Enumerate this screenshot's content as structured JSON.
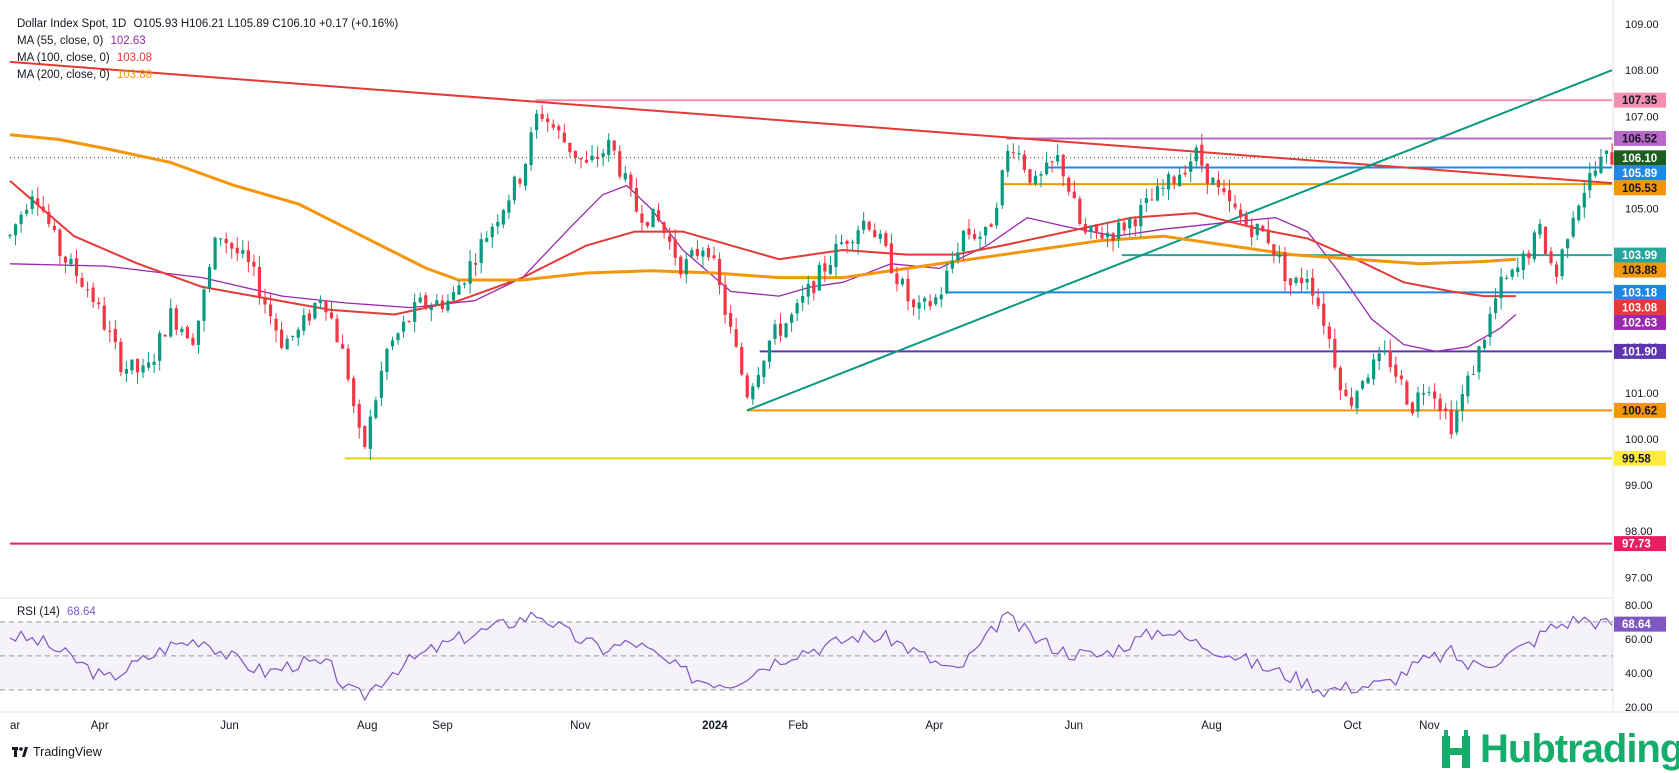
{
  "header": {
    "symbol": "Dollar Index Spot, 1D",
    "ohlc": "O105.93  H106.21  L105.89  C106.10  +0.17 (+0.16%)"
  },
  "indicators": [
    {
      "label": "MA (55, close, 0)",
      "value": "102.63",
      "color": "#9c27b0"
    },
    {
      "label": "MA (100, close, 0)",
      "value": "103.08",
      "color": "#e53935"
    },
    {
      "label": "MA (200, close, 0)",
      "value": "103.88",
      "color": "#f49609"
    }
  ],
  "rsi": {
    "label": "RSI (14)",
    "value": "68.64"
  },
  "branding": {
    "tradingview": "TradingView",
    "hub": "Hubtrading"
  },
  "chart_data": [
    {
      "type": "candlestick",
      "title": "Dollar Index Spot, 1D",
      "x_ticks": [
        "ar",
        "Apr",
        "Jun",
        "Aug",
        "Sep",
        "Nov",
        "2024",
        "Feb",
        "Apr",
        "Jun",
        "Aug",
        "Oct",
        "Nov"
      ],
      "y_ticks": [
        "109.00",
        "108.00",
        "107.00",
        "106.00",
        "105.00",
        "104.00",
        "103.00",
        "102.00",
        "101.00",
        "100.00",
        "99.00",
        "98.00",
        "97.00"
      ],
      "ylim": [
        96.55,
        109.35
      ],
      "current_price": 106.1,
      "price_tags": [
        {
          "value": "107.35",
          "color": "#f48fb1",
          "text_color": "#131722"
        },
        {
          "value": "106.52",
          "color": "#ba68c8",
          "text_color": "#131722"
        },
        {
          "value": "106.10",
          "color": "#1b5e20",
          "text_color": "#ffffff"
        },
        {
          "value": "105.89",
          "color": "#1e88e5",
          "text_color": "#ffffff"
        },
        {
          "value": "105.53",
          "color": "#f49609",
          "text_color": "#131722"
        },
        {
          "value": "103.99",
          "color": "#26a69a",
          "text_color": "#ffffff"
        },
        {
          "value": "103.88",
          "color": "#f49609",
          "text_color": "#131722"
        },
        {
          "value": "103.18",
          "color": "#1e88e5",
          "text_color": "#ffffff"
        },
        {
          "value": "103.08",
          "color": "#e53935",
          "text_color": "#ffffff"
        },
        {
          "value": "102.63",
          "color": "#9c27b0",
          "text_color": "#ffffff"
        },
        {
          "value": "101.90",
          "color": "#5e35b1",
          "text_color": "#ffffff"
        },
        {
          "value": "100.62",
          "color": "#f49609",
          "text_color": "#131722"
        },
        {
          "value": "99.58",
          "color": "#ffeb3b",
          "text_color": "#131722"
        },
        {
          "value": "97.73",
          "color": "#e91e63",
          "text_color": "#ffffff"
        }
      ],
      "levels": [
        {
          "y": 107.35,
          "x0": 0.328,
          "color": "#f48fb1"
        },
        {
          "y": 106.52,
          "x0": 0.622,
          "color": "#ba68c8"
        },
        {
          "y": 105.89,
          "x0": 0.648,
          "color": "#1e88e5"
        },
        {
          "y": 105.53,
          "x0": 0.62,
          "color": "#f49609"
        },
        {
          "y": 103.99,
          "x0": 0.694,
          "color": "#26a69a"
        },
        {
          "y": 103.18,
          "x0": 0.584,
          "color": "#1e88e5"
        },
        {
          "y": 101.9,
          "x0": 0.468,
          "color": "#5e35b1"
        },
        {
          "y": 100.62,
          "x0": 0.46,
          "color": "#f49609"
        },
        {
          "y": 99.58,
          "x0": 0.209,
          "color": "#e3d800"
        },
        {
          "y": 97.73,
          "x0": 0.0,
          "color": "#e91e63"
        }
      ],
      "trendlines": [
        {
          "name": "resistance",
          "color": "#e53935",
          "from": [
            0.0,
            108.18
          ],
          "to": [
            1.0,
            105.55
          ]
        },
        {
          "name": "support",
          "color": "#089981",
          "from": [
            0.46,
            100.62
          ],
          "to": [
            1.0,
            108.0
          ]
        }
      ],
      "ma_series": [
        {
          "name": "MA (55, close, 0)",
          "color": "#9c27b0",
          "points": [
            [
              0.0,
              103.8
            ],
            [
              0.06,
              103.75
            ],
            [
              0.12,
              103.5
            ],
            [
              0.17,
              103.1
            ],
            [
              0.21,
              102.95
            ],
            [
              0.25,
              102.85
            ],
            [
              0.29,
              103.0
            ],
            [
              0.32,
              103.5
            ],
            [
              0.35,
              104.6
            ],
            [
              0.37,
              105.3
            ],
            [
              0.385,
              105.5
            ],
            [
              0.4,
              105.0
            ],
            [
              0.42,
              104.1
            ],
            [
              0.45,
              103.2
            ],
            [
              0.48,
              103.1
            ],
            [
              0.5,
              103.3
            ],
            [
              0.52,
              103.4
            ],
            [
              0.55,
              103.8
            ],
            [
              0.58,
              103.7
            ],
            [
              0.61,
              104.2
            ],
            [
              0.635,
              104.8
            ],
            [
              0.66,
              104.6
            ],
            [
              0.69,
              104.4
            ],
            [
              0.72,
              104.55
            ],
            [
              0.76,
              104.7
            ],
            [
              0.79,
              104.8
            ],
            [
              0.81,
              104.5
            ],
            [
              0.83,
              103.6
            ],
            [
              0.85,
              102.6
            ],
            [
              0.87,
              102.05
            ],
            [
              0.89,
              101.9
            ],
            [
              0.91,
              102.0
            ],
            [
              0.93,
              102.4
            ],
            [
              0.94,
              102.7
            ]
          ]
        },
        {
          "name": "MA (100, close, 0)",
          "color": "#e53935",
          "points": [
            [
              0.0,
              105.6
            ],
            [
              0.04,
              104.4
            ],
            [
              0.08,
              103.8
            ],
            [
              0.12,
              103.3
            ],
            [
              0.16,
              103.05
            ],
            [
              0.2,
              102.8
            ],
            [
              0.24,
              102.7
            ],
            [
              0.28,
              103.0
            ],
            [
              0.32,
              103.5
            ],
            [
              0.36,
              104.2
            ],
            [
              0.39,
              104.5
            ],
            [
              0.42,
              104.5
            ],
            [
              0.45,
              104.2
            ],
            [
              0.48,
              103.9
            ],
            [
              0.52,
              104.1
            ],
            [
              0.56,
              104.0
            ],
            [
              0.59,
              104.0
            ],
            [
              0.62,
              104.2
            ],
            [
              0.66,
              104.5
            ],
            [
              0.7,
              104.8
            ],
            [
              0.74,
              104.9
            ],
            [
              0.78,
              104.55
            ],
            [
              0.81,
              104.35
            ],
            [
              0.84,
              103.9
            ],
            [
              0.87,
              103.4
            ],
            [
              0.9,
              103.2
            ],
            [
              0.92,
              103.1
            ],
            [
              0.94,
              103.1
            ]
          ]
        },
        {
          "name": "MA (200, close, 0)",
          "color": "#f49609",
          "points": [
            [
              0.0,
              106.6
            ],
            [
              0.03,
              106.5
            ],
            [
              0.06,
              106.3
            ],
            [
              0.1,
              106.0
            ],
            [
              0.14,
              105.5
            ],
            [
              0.18,
              105.1
            ],
            [
              0.22,
              104.4
            ],
            [
              0.26,
              103.7
            ],
            [
              0.28,
              103.45
            ],
            [
              0.32,
              103.45
            ],
            [
              0.36,
              103.6
            ],
            [
              0.4,
              103.65
            ],
            [
              0.44,
              103.6
            ],
            [
              0.48,
              103.5
            ],
            [
              0.52,
              103.5
            ],
            [
              0.56,
              103.7
            ],
            [
              0.6,
              103.9
            ],
            [
              0.64,
              104.1
            ],
            [
              0.68,
              104.3
            ],
            [
              0.72,
              104.4
            ],
            [
              0.76,
              104.2
            ],
            [
              0.8,
              104.0
            ],
            [
              0.84,
              103.9
            ],
            [
              0.88,
              103.8
            ],
            [
              0.92,
              103.85
            ],
            [
              0.94,
              103.9
            ]
          ]
        }
      ],
      "price_path": [
        [
          0.0,
          104.4
        ],
        [
          0.015,
          105.5
        ],
        [
          0.03,
          104.1
        ],
        [
          0.05,
          103.2
        ],
        [
          0.07,
          101.6
        ],
        [
          0.085,
          101.4
        ],
        [
          0.1,
          102.7
        ],
        [
          0.115,
          102.2
        ],
        [
          0.13,
          104.5
        ],
        [
          0.15,
          103.7
        ],
        [
          0.17,
          102.1
        ],
        [
          0.18,
          102.3
        ],
        [
          0.195,
          103.2
        ],
        [
          0.21,
          101.6
        ],
        [
          0.22,
          99.65
        ],
        [
          0.235,
          101.9
        ],
        [
          0.255,
          102.9
        ],
        [
          0.275,
          103.0
        ],
        [
          0.3,
          104.6
        ],
        [
          0.32,
          105.8
        ],
        [
          0.33,
          107.15
        ],
        [
          0.345,
          106.5
        ],
        [
          0.36,
          105.9
        ],
        [
          0.375,
          106.4
        ],
        [
          0.39,
          105.0
        ],
        [
          0.405,
          104.7
        ],
        [
          0.42,
          103.7
        ],
        [
          0.435,
          104.3
        ],
        [
          0.45,
          102.3
        ],
        [
          0.46,
          101.0
        ],
        [
          0.475,
          102.2
        ],
        [
          0.49,
          102.7
        ],
        [
          0.5,
          103.3
        ],
        [
          0.52,
          104.3
        ],
        [
          0.535,
          104.8
        ],
        [
          0.55,
          103.8
        ],
        [
          0.565,
          102.7
        ],
        [
          0.58,
          103.1
        ],
        [
          0.595,
          104.5
        ],
        [
          0.61,
          104.4
        ],
        [
          0.625,
          106.5
        ],
        [
          0.64,
          105.5
        ],
        [
          0.655,
          106.1
        ],
        [
          0.67,
          104.4
        ],
        [
          0.69,
          104.5
        ],
        [
          0.705,
          104.9
        ],
        [
          0.725,
          105.6
        ],
        [
          0.74,
          106.2
        ],
        [
          0.755,
          105.3
        ],
        [
          0.77,
          104.7
        ],
        [
          0.785,
          104.4
        ],
        [
          0.8,
          103.3
        ],
        [
          0.81,
          103.6
        ],
        [
          0.82,
          102.6
        ],
        [
          0.835,
          100.7
        ],
        [
          0.845,
          101.4
        ],
        [
          0.86,
          101.8
        ],
        [
          0.875,
          100.7
        ],
        [
          0.885,
          101.3
        ],
        [
          0.9,
          100.3
        ],
        [
          0.915,
          101.7
        ],
        [
          0.93,
          103.3
        ],
        [
          0.94,
          103.6
        ],
        [
          0.955,
          104.5
        ],
        [
          0.965,
          103.5
        ],
        [
          0.975,
          104.9
        ],
        [
          0.985,
          105.6
        ],
        [
          0.995,
          106.1
        ]
      ],
      "up_color": "#089981",
      "down_color": "#f23645"
    },
    {
      "type": "line",
      "title": "RSI (14)",
      "y_ticks": [
        "80.00",
        "60.00",
        "40.00",
        "20.00"
      ],
      "ylim": [
        17,
        84
      ],
      "band": [
        30,
        70
      ],
      "midline": 50,
      "current": 68.64,
      "x": [
        0.0,
        0.02,
        0.04,
        0.06,
        0.08,
        0.1,
        0.12,
        0.14,
        0.16,
        0.18,
        0.2,
        0.21,
        0.22,
        0.24,
        0.26,
        0.28,
        0.3,
        0.32,
        0.33,
        0.35,
        0.37,
        0.39,
        0.41,
        0.43,
        0.45,
        0.47,
        0.49,
        0.51,
        0.53,
        0.55,
        0.57,
        0.59,
        0.61,
        0.62,
        0.64,
        0.66,
        0.68,
        0.7,
        0.72,
        0.74,
        0.76,
        0.78,
        0.8,
        0.82,
        0.84,
        0.86,
        0.88,
        0.9,
        0.91,
        0.93,
        0.95,
        0.96,
        0.98,
        1.0
      ],
      "values": [
        62,
        58,
        48,
        36,
        46,
        56,
        60,
        48,
        40,
        46,
        44,
        30,
        26,
        42,
        52,
        60,
        66,
        72,
        75,
        62,
        54,
        58,
        46,
        36,
        34,
        44,
        52,
        56,
        62,
        60,
        50,
        40,
        60,
        74,
        60,
        52,
        50,
        58,
        66,
        58,
        52,
        44,
        38,
        30,
        32,
        34,
        46,
        52,
        44,
        48,
        58,
        66,
        72,
        68
      ]
    }
  ]
}
